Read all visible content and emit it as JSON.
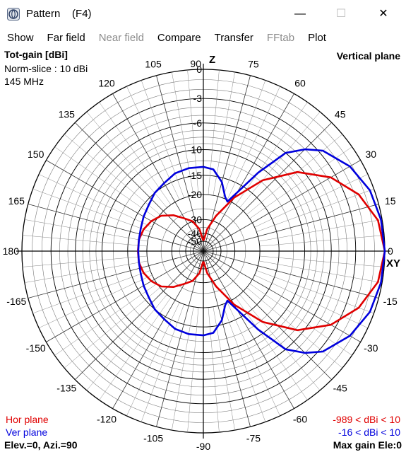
{
  "window": {
    "title": "Pattern    (F4)",
    "min_glyph": "—",
    "max_glyph": "☐",
    "close_glyph": "✕",
    "icon": "app-icon"
  },
  "menu": [
    {
      "label": "Show",
      "enabled": true
    },
    {
      "label": "Far field",
      "enabled": true
    },
    {
      "label": "Near field",
      "enabled": false
    },
    {
      "label": "Compare",
      "enabled": true
    },
    {
      "label": "Transfer",
      "enabled": true
    },
    {
      "label": "FFtab",
      "enabled": false
    },
    {
      "label": "Plot",
      "enabled": true
    }
  ],
  "plot": {
    "title": "Tot-gain [dBi]",
    "norm_slice": "Norm-slice : 10 dBi",
    "frequency": "145 MHz",
    "plane": "Vertical plane",
    "legend_hor": "Hor plane",
    "legend_ver": "Ver plane",
    "hor_range": "-989 < dBi < 10",
    "ver_range": "-16 < dBi < 10",
    "elev_azi": "Elev.=0, Azi.=90",
    "max_gain": "Max gain Ele:0",
    "axis_z": "Z",
    "axis_xy": "XY",
    "colors": {
      "hor": "#e00000",
      "ver": "#0000dd",
      "grid": "#000000"
    }
  },
  "chart_data": {
    "type": "polar",
    "angle_labels": [
      {
        "deg": 0,
        "label": "0"
      },
      {
        "deg": 15,
        "label": "15"
      },
      {
        "deg": 30,
        "label": "30"
      },
      {
        "deg": 45,
        "label": "45"
      },
      {
        "deg": 60,
        "label": "60"
      },
      {
        "deg": 75,
        "label": "75"
      },
      {
        "deg": 90,
        "label": "90"
      },
      {
        "deg": 105,
        "label": "105"
      },
      {
        "deg": 120,
        "label": "120"
      },
      {
        "deg": 135,
        "label": "135"
      },
      {
        "deg": 150,
        "label": "150"
      },
      {
        "deg": 165,
        "label": "165"
      },
      {
        "deg": 180,
        "label": "180"
      },
      {
        "deg": 195,
        "label": "-165"
      },
      {
        "deg": 210,
        "label": "-150"
      },
      {
        "deg": 225,
        "label": "-135"
      },
      {
        "deg": 240,
        "label": "-120"
      },
      {
        "deg": 255,
        "label": "-105"
      },
      {
        "deg": 270,
        "label": "-90"
      },
      {
        "deg": 285,
        "label": "-75"
      },
      {
        "deg": 300,
        "label": "-60"
      },
      {
        "deg": 315,
        "label": "-45"
      },
      {
        "deg": 330,
        "label": "-30"
      },
      {
        "deg": 345,
        "label": "-15"
      }
    ],
    "rings": [
      {
        "db": 0,
        "label": "0"
      },
      {
        "db": -3,
        "label": "-3"
      },
      {
        "db": -6,
        "label": "-6"
      },
      {
        "db": -10,
        "label": "-10"
      },
      {
        "db": -15,
        "label": "-15"
      },
      {
        "db": -20,
        "label": "-20"
      },
      {
        "db": -30,
        "label": "-30"
      },
      {
        "db": -40,
        "label": "-40"
      },
      {
        "db": -50,
        "label": "-50"
      }
    ],
    "series": [
      {
        "name": "Hor plane",
        "points": [
          [
            0,
            0
          ],
          [
            10,
            -0.4
          ],
          [
            20,
            -1.6
          ],
          [
            30,
            -3.6
          ],
          [
            40,
            -6.7
          ],
          [
            50,
            -11.6
          ],
          [
            60,
            -18.5
          ],
          [
            70,
            -27
          ],
          [
            80,
            -36
          ],
          [
            88,
            -48
          ],
          [
            92,
            -48
          ],
          [
            100,
            -36
          ],
          [
            110,
            -30
          ],
          [
            120,
            -27
          ],
          [
            130,
            -23.3
          ],
          [
            140,
            -20.5
          ],
          [
            150,
            -19
          ],
          [
            160,
            -18
          ],
          [
            170,
            -17.5
          ],
          [
            180,
            -17.5
          ],
          [
            190,
            -17.5
          ],
          [
            200,
            -18
          ],
          [
            210,
            -19
          ],
          [
            220,
            -20.5
          ],
          [
            230,
            -23.3
          ],
          [
            240,
            -27
          ],
          [
            250,
            -30
          ],
          [
            260,
            -36
          ],
          [
            268,
            -48
          ],
          [
            272,
            -48
          ],
          [
            280,
            -36
          ],
          [
            290,
            -27
          ],
          [
            300,
            -18.5
          ],
          [
            310,
            -11.6
          ],
          [
            320,
            -6.7
          ],
          [
            330,
            -3.6
          ],
          [
            340,
            -1.6
          ],
          [
            350,
            -0.4
          ],
          [
            360,
            0
          ]
        ]
      },
      {
        "name": "Ver plane",
        "points": [
          [
            0,
            0
          ],
          [
            10,
            -0.1
          ],
          [
            20,
            -0.4
          ],
          [
            30,
            -1.2
          ],
          [
            40,
            -2.6
          ],
          [
            45,
            -4
          ],
          [
            50,
            -6
          ],
          [
            55,
            -11
          ],
          [
            60,
            -17
          ],
          [
            64,
            -20.5
          ],
          [
            68,
            -19.5
          ],
          [
            75,
            -16
          ],
          [
            83,
            -13.6
          ],
          [
            90,
            -13.2
          ],
          [
            100,
            -13.2
          ],
          [
            110,
            -13.5
          ],
          [
            120,
            -14.4
          ],
          [
            130,
            -15
          ],
          [
            140,
            -16
          ],
          [
            150,
            -16.6
          ],
          [
            160,
            -17.2
          ],
          [
            170,
            -17.5
          ],
          [
            180,
            -17.6
          ],
          [
            190,
            -17.5
          ],
          [
            200,
            -17.2
          ],
          [
            210,
            -16.6
          ],
          [
            220,
            -16
          ],
          [
            230,
            -15
          ],
          [
            240,
            -14.4
          ],
          [
            250,
            -13.5
          ],
          [
            260,
            -13.2
          ],
          [
            270,
            -13.2
          ],
          [
            277,
            -13.6
          ],
          [
            285,
            -16
          ],
          [
            292,
            -19.5
          ],
          [
            296,
            -20.5
          ],
          [
            300,
            -17
          ],
          [
            305,
            -11
          ],
          [
            310,
            -6
          ],
          [
            315,
            -4
          ],
          [
            320,
            -2.6
          ],
          [
            330,
            -1.2
          ],
          [
            340,
            -0.4
          ],
          [
            350,
            -0.1
          ],
          [
            360,
            0
          ]
        ]
      }
    ]
  }
}
